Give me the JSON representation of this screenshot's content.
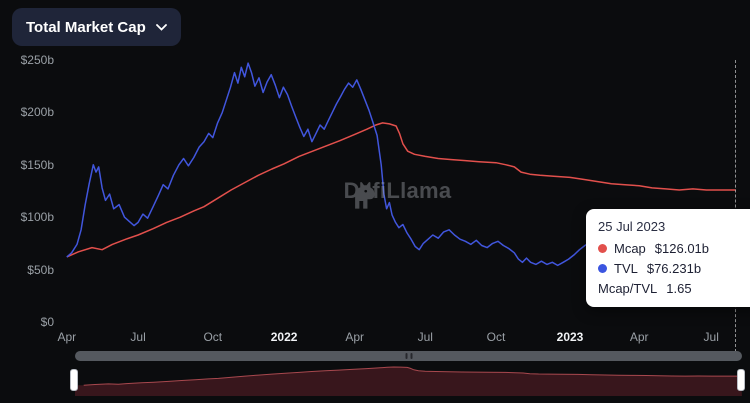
{
  "header": {
    "selector_label": "Total Market Cap"
  },
  "watermark": {
    "brand": "DefiLlama"
  },
  "tooltip": {
    "date": "25 Jul 2023",
    "rows": [
      {
        "label": "Mcap",
        "value": "$126.01b",
        "color": "#e2504c"
      },
      {
        "label": "TVL",
        "value": "$76.231b",
        "color": "#3b55e0"
      },
      {
        "label": "Mcap/TVL",
        "value": "1.65",
        "color": ""
      }
    ]
  },
  "colors": {
    "background": "#0b0c0e",
    "mcap_line": "#e2504c",
    "tvl_line": "#4156dd",
    "navigator_fill": "#38161c",
    "navigator_stroke": "#a8484e"
  },
  "chart_data": {
    "type": "line",
    "title": "Total Market Cap",
    "xlabel": "",
    "ylabel": "",
    "ylim": [
      0,
      250
    ],
    "grid": false,
    "legend_position": "tooltip",
    "y_ticks": [
      {
        "label": "$250b",
        "value": 250
      },
      {
        "label": "$200b",
        "value": 200
      },
      {
        "label": "$150b",
        "value": 150
      },
      {
        "label": "$100b",
        "value": 100
      },
      {
        "label": "$50b",
        "value": 50
      },
      {
        "label": "$0",
        "value": 0
      }
    ],
    "x_ticks": [
      {
        "label": "Apr",
        "pos": 0.013,
        "bold": false
      },
      {
        "label": "Jul",
        "pos": 0.118,
        "bold": false
      },
      {
        "label": "Oct",
        "pos": 0.228,
        "bold": false
      },
      {
        "label": "2022",
        "pos": 0.333,
        "bold": true
      },
      {
        "label": "Apr",
        "pos": 0.437,
        "bold": false
      },
      {
        "label": "Jul",
        "pos": 0.541,
        "bold": false
      },
      {
        "label": "Oct",
        "pos": 0.645,
        "bold": false
      },
      {
        "label": "2023",
        "pos": 0.754,
        "bold": true
      },
      {
        "label": "Apr",
        "pos": 0.856,
        "bold": false
      },
      {
        "label": "Jul",
        "pos": 0.962,
        "bold": false
      }
    ],
    "series": [
      {
        "name": "Mcap",
        "color": "#e2504c",
        "points": [
          [
            0.013,
            62
          ],
          [
            0.03,
            67
          ],
          [
            0.05,
            71
          ],
          [
            0.065,
            69
          ],
          [
            0.08,
            74
          ],
          [
            0.1,
            79
          ],
          [
            0.118,
            83
          ],
          [
            0.14,
            89
          ],
          [
            0.16,
            95
          ],
          [
            0.18,
            100
          ],
          [
            0.2,
            106
          ],
          [
            0.215,
            110
          ],
          [
            0.235,
            118
          ],
          [
            0.255,
            126
          ],
          [
            0.275,
            133
          ],
          [
            0.295,
            140
          ],
          [
            0.315,
            146
          ],
          [
            0.333,
            151
          ],
          [
            0.355,
            158
          ],
          [
            0.375,
            163
          ],
          [
            0.395,
            168
          ],
          [
            0.415,
            173
          ],
          [
            0.437,
            179
          ],
          [
            0.455,
            184
          ],
          [
            0.468,
            188
          ],
          [
            0.478,
            190
          ],
          [
            0.488,
            189
          ],
          [
            0.498,
            187
          ],
          [
            0.503,
            180
          ],
          [
            0.508,
            170
          ],
          [
            0.515,
            163
          ],
          [
            0.525,
            160
          ],
          [
            0.541,
            158
          ],
          [
            0.56,
            156
          ],
          [
            0.58,
            155
          ],
          [
            0.6,
            154
          ],
          [
            0.62,
            153
          ],
          [
            0.645,
            152
          ],
          [
            0.66,
            150
          ],
          [
            0.672,
            148
          ],
          [
            0.682,
            143
          ],
          [
            0.695,
            141
          ],
          [
            0.71,
            140
          ],
          [
            0.73,
            139
          ],
          [
            0.754,
            138
          ],
          [
            0.775,
            136
          ],
          [
            0.795,
            134
          ],
          [
            0.815,
            132
          ],
          [
            0.835,
            131
          ],
          [
            0.856,
            130
          ],
          [
            0.875,
            128
          ],
          [
            0.895,
            127
          ],
          [
            0.915,
            126
          ],
          [
            0.935,
            127
          ],
          [
            0.955,
            126
          ],
          [
            0.975,
            126
          ],
          [
            0.998,
            126
          ]
        ]
      },
      {
        "name": "TVL",
        "color": "#4156dd",
        "points": [
          [
            0.013,
            62
          ],
          [
            0.02,
            66
          ],
          [
            0.028,
            74
          ],
          [
            0.034,
            88
          ],
          [
            0.04,
            112
          ],
          [
            0.046,
            132
          ],
          [
            0.052,
            150
          ],
          [
            0.056,
            143
          ],
          [
            0.06,
            148
          ],
          [
            0.065,
            128
          ],
          [
            0.07,
            116
          ],
          [
            0.076,
            122
          ],
          [
            0.082,
            108
          ],
          [
            0.09,
            112
          ],
          [
            0.098,
            100
          ],
          [
            0.105,
            96
          ],
          [
            0.112,
            92
          ],
          [
            0.118,
            95
          ],
          [
            0.125,
            103
          ],
          [
            0.132,
            99
          ],
          [
            0.14,
            110
          ],
          [
            0.148,
            121
          ],
          [
            0.155,
            131
          ],
          [
            0.162,
            127
          ],
          [
            0.17,
            140
          ],
          [
            0.178,
            150
          ],
          [
            0.185,
            156
          ],
          [
            0.192,
            149
          ],
          [
            0.2,
            157
          ],
          [
            0.208,
            167
          ],
          [
            0.215,
            172
          ],
          [
            0.222,
            180
          ],
          [
            0.228,
            176
          ],
          [
            0.235,
            190
          ],
          [
            0.242,
            200
          ],
          [
            0.248,
            212
          ],
          [
            0.254,
            224
          ],
          [
            0.26,
            238
          ],
          [
            0.265,
            228
          ],
          [
            0.27,
            243
          ],
          [
            0.275,
            234
          ],
          [
            0.28,
            247
          ],
          [
            0.285,
            238
          ],
          [
            0.29,
            225
          ],
          [
            0.296,
            233
          ],
          [
            0.302,
            219
          ],
          [
            0.308,
            229
          ],
          [
            0.314,
            236
          ],
          [
            0.32,
            226
          ],
          [
            0.326,
            214
          ],
          [
            0.332,
            224
          ],
          [
            0.338,
            217
          ],
          [
            0.344,
            206
          ],
          [
            0.35,
            196
          ],
          [
            0.356,
            186
          ],
          [
            0.362,
            177
          ],
          [
            0.368,
            184
          ],
          [
            0.374,
            172
          ],
          [
            0.38,
            180
          ],
          [
            0.386,
            188
          ],
          [
            0.392,
            184
          ],
          [
            0.398,
            192
          ],
          [
            0.404,
            200
          ],
          [
            0.41,
            208
          ],
          [
            0.416,
            215
          ],
          [
            0.422,
            222
          ],
          [
            0.428,
            228
          ],
          [
            0.434,
            224
          ],
          [
            0.44,
            231
          ],
          [
            0.446,
            222
          ],
          [
            0.452,
            212
          ],
          [
            0.458,
            202
          ],
          [
            0.464,
            190
          ],
          [
            0.47,
            178
          ],
          [
            0.476,
            150
          ],
          [
            0.48,
            122
          ],
          [
            0.484,
            108
          ],
          [
            0.488,
            114
          ],
          [
            0.492,
            102
          ],
          [
            0.497,
            95
          ],
          [
            0.502,
            90
          ],
          [
            0.508,
            93
          ],
          [
            0.514,
            85
          ],
          [
            0.52,
            79
          ],
          [
            0.526,
            72
          ],
          [
            0.532,
            69
          ],
          [
            0.538,
            75
          ],
          [
            0.545,
            79
          ],
          [
            0.552,
            83
          ],
          [
            0.56,
            80
          ],
          [
            0.568,
            86
          ],
          [
            0.576,
            88
          ],
          [
            0.584,
            83
          ],
          [
            0.592,
            79
          ],
          [
            0.6,
            77
          ],
          [
            0.608,
            74
          ],
          [
            0.616,
            78
          ],
          [
            0.624,
            73
          ],
          [
            0.632,
            71
          ],
          [
            0.64,
            75
          ],
          [
            0.648,
            77
          ],
          [
            0.656,
            73
          ],
          [
            0.664,
            70
          ],
          [
            0.672,
            66
          ],
          [
            0.678,
            60
          ],
          [
            0.684,
            57
          ],
          [
            0.69,
            61
          ],
          [
            0.696,
            57
          ],
          [
            0.704,
            55
          ],
          [
            0.712,
            58
          ],
          [
            0.72,
            55
          ],
          [
            0.728,
            57
          ],
          [
            0.736,
            54
          ],
          [
            0.744,
            57
          ],
          [
            0.752,
            60
          ],
          [
            0.76,
            64
          ],
          [
            0.768,
            69
          ],
          [
            0.776,
            73
          ],
          [
            0.784,
            76
          ],
          [
            0.792,
            72
          ],
          [
            0.8,
            76
          ],
          [
            0.808,
            73
          ],
          [
            0.816,
            77
          ],
          [
            0.824,
            74
          ],
          [
            0.832,
            71
          ],
          [
            0.84,
            73
          ],
          [
            0.848,
            70
          ],
          [
            0.856,
            72
          ],
          [
            0.864,
            69
          ],
          [
            0.872,
            71
          ],
          [
            0.88,
            67
          ],
          [
            0.888,
            65
          ],
          [
            0.896,
            63
          ],
          [
            0.904,
            66
          ],
          [
            0.912,
            64
          ],
          [
            0.92,
            67
          ],
          [
            0.928,
            71
          ],
          [
            0.936,
            74
          ],
          [
            0.944,
            72
          ],
          [
            0.952,
            75
          ],
          [
            0.96,
            73
          ],
          [
            0.97,
            75
          ],
          [
            0.985,
            74
          ],
          [
            0.998,
            76
          ]
        ]
      }
    ]
  }
}
